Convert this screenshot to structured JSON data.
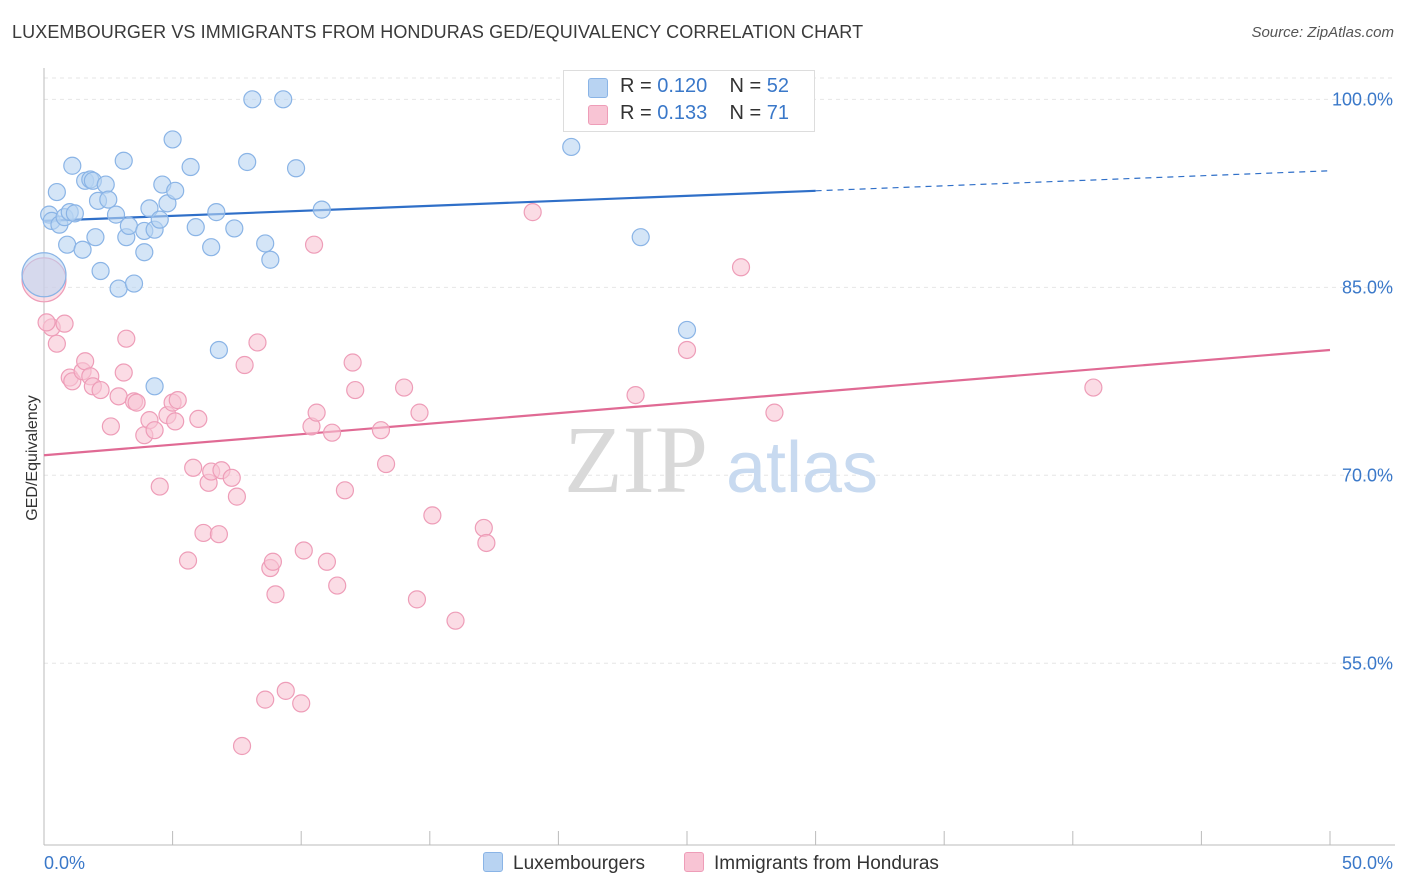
{
  "title": "LUXEMBOURGER VS IMMIGRANTS FROM HONDURAS GED/EQUIVALENCY CORRELATION CHART",
  "source": "Source: ZipAtlas.com",
  "watermark": {
    "zip": "ZIP",
    "atlas": "atlas"
  },
  "legend": {
    "r_label": "R =",
    "n_label": "N =",
    "series1": {
      "r": "0.120",
      "n": "52"
    },
    "series2": {
      "r": "0.133",
      "n": "71"
    }
  },
  "colors": {
    "blue_fill": "#b8d3f2",
    "blue_stroke": "#8ab4e6",
    "blue_line": "#2f6fc8",
    "pink_fill": "#f8c4d4",
    "pink_stroke": "#ee9db8",
    "pink_line": "#e06a94",
    "tick_label": "#3a78c9",
    "grid": "#e6e6e6"
  },
  "chart_data": {
    "type": "scatter",
    "title": "LUXEMBOURGER VS IMMIGRANTS FROM HONDURAS GED/EQUIVALENCY CORRELATION CHART",
    "xlabel": "",
    "ylabel": "GED/Equivalency",
    "xlim": [
      0,
      50
    ],
    "ylim": [
      40.5,
      102.5
    ],
    "x_tick_labels": [
      "0.0%",
      "50.0%"
    ],
    "y_ticks": [
      55,
      70,
      85,
      100
    ],
    "y_tick_labels": [
      "55.0%",
      "70.0%",
      "85.0%",
      "100.0%"
    ],
    "grid": "horizontal dashed",
    "legend_position": "top-center",
    "series": [
      {
        "name": "Luxemburgers",
        "color": "#b8d3f2",
        "trend": {
          "x": [
            0,
            30,
            50
          ],
          "y": [
            90.3,
            92.7,
            94.3
          ],
          "solid_until_x": 30
        },
        "points": [
          [
            0.2,
            90.8
          ],
          [
            0.3,
            90.3
          ],
          [
            0.5,
            92.6
          ],
          [
            0.6,
            90.0
          ],
          [
            0.8,
            90.6
          ],
          [
            0.9,
            88.4
          ],
          [
            1.0,
            91.0
          ],
          [
            1.1,
            94.7
          ],
          [
            1.2,
            90.9
          ],
          [
            1.5,
            88.0
          ],
          [
            1.6,
            93.5
          ],
          [
            1.8,
            93.6
          ],
          [
            1.9,
            93.5
          ],
          [
            2.0,
            89.0
          ],
          [
            2.1,
            91.9
          ],
          [
            2.2,
            86.3
          ],
          [
            2.4,
            93.2
          ],
          [
            2.5,
            92.0
          ],
          [
            2.8,
            90.8
          ],
          [
            2.9,
            84.9
          ],
          [
            3.1,
            95.1
          ],
          [
            3.2,
            89.0
          ],
          [
            3.3,
            89.9
          ],
          [
            3.5,
            85.3
          ],
          [
            3.9,
            87.8
          ],
          [
            3.9,
            89.5
          ],
          [
            4.1,
            91.3
          ],
          [
            4.3,
            77.1
          ],
          [
            4.3,
            89.6
          ],
          [
            4.5,
            90.4
          ],
          [
            4.6,
            93.2
          ],
          [
            4.8,
            91.7
          ],
          [
            5.0,
            96.8
          ],
          [
            5.1,
            92.7
          ],
          [
            5.7,
            94.6
          ],
          [
            5.9,
            89.8
          ],
          [
            6.5,
            88.2
          ],
          [
            6.7,
            91.0
          ],
          [
            6.8,
            80.0
          ],
          [
            7.4,
            89.7
          ],
          [
            8.1,
            100.0
          ],
          [
            7.9,
            95.0
          ],
          [
            8.6,
            88.5
          ],
          [
            8.8,
            87.2
          ],
          [
            9.3,
            100.0
          ],
          [
            9.8,
            94.5
          ],
          [
            10.8,
            91.2
          ],
          [
            20.5,
            96.2
          ],
          [
            23.2,
            89.0
          ],
          [
            25.0,
            81.6
          ],
          [
            0.0,
            86.0,
            "big"
          ]
        ]
      },
      {
        "name": "Immigrants from Honduras",
        "color": "#f8c4d4",
        "trend": {
          "x": [
            0,
            50
          ],
          "y": [
            71.6,
            80.0
          ],
          "solid_until_x": 50
        },
        "points": [
          [
            0.3,
            81.8
          ],
          [
            0.5,
            80.5
          ],
          [
            0.8,
            82.1
          ],
          [
            1.0,
            77.8
          ],
          [
            1.1,
            77.5
          ],
          [
            1.5,
            78.3
          ],
          [
            1.6,
            79.1
          ],
          [
            1.8,
            77.9
          ],
          [
            1.9,
            77.1
          ],
          [
            2.2,
            76.8
          ],
          [
            2.6,
            73.9
          ],
          [
            2.9,
            76.3
          ],
          [
            3.1,
            78.2
          ],
          [
            3.2,
            80.9
          ],
          [
            3.5,
            75.9
          ],
          [
            3.6,
            75.8
          ],
          [
            3.9,
            73.2
          ],
          [
            4.1,
            74.4
          ],
          [
            4.3,
            73.6
          ],
          [
            4.5,
            69.1
          ],
          [
            4.8,
            74.8
          ],
          [
            5.0,
            75.8
          ],
          [
            5.1,
            74.3
          ],
          [
            5.2,
            76.0
          ],
          [
            5.6,
            63.2
          ],
          [
            5.8,
            70.6
          ],
          [
            6.0,
            74.5
          ],
          [
            6.2,
            65.4
          ],
          [
            6.4,
            69.4
          ],
          [
            6.5,
            70.3
          ],
          [
            6.8,
            65.3
          ],
          [
            6.9,
            70.4
          ],
          [
            7.3,
            69.8
          ],
          [
            7.5,
            68.3
          ],
          [
            7.7,
            48.4
          ],
          [
            7.8,
            78.8
          ],
          [
            8.3,
            80.6
          ],
          [
            8.6,
            52.1
          ],
          [
            8.8,
            62.6
          ],
          [
            8.9,
            63.1
          ],
          [
            9.0,
            60.5
          ],
          [
            9.4,
            52.8
          ],
          [
            10.0,
            51.8
          ],
          [
            10.1,
            64.0
          ],
          [
            10.4,
            73.9
          ],
          [
            10.5,
            88.4
          ],
          [
            10.6,
            75.0
          ],
          [
            11.0,
            63.1
          ],
          [
            11.2,
            73.4
          ],
          [
            11.4,
            61.2
          ],
          [
            11.7,
            68.8
          ],
          [
            12.0,
            79.0
          ],
          [
            12.1,
            76.8
          ],
          [
            13.1,
            73.6
          ],
          [
            13.3,
            70.9
          ],
          [
            14.0,
            77.0
          ],
          [
            14.5,
            60.1
          ],
          [
            14.6,
            75.0
          ],
          [
            15.1,
            66.8
          ],
          [
            16.0,
            58.4
          ],
          [
            17.1,
            65.8
          ],
          [
            17.2,
            64.6
          ],
          [
            19.0,
            91.0
          ],
          [
            23.0,
            76.4
          ],
          [
            25.0,
            80.0
          ],
          [
            27.1,
            86.6
          ],
          [
            28.4,
            75.0
          ],
          [
            29.0,
            100.0
          ],
          [
            40.8,
            77.0
          ],
          [
            0.0,
            85.6,
            "big"
          ],
          [
            0.1,
            82.2
          ]
        ]
      }
    ]
  },
  "bottom_legend": {
    "item1": "Luxembourgers",
    "item2": "Immigrants from Honduras"
  }
}
